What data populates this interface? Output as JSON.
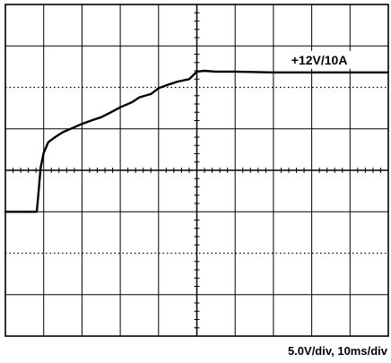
{
  "chart_data": {
    "type": "line",
    "title": "",
    "xlabel": "",
    "ylabel": "",
    "grid": true,
    "divisions": {
      "x": 10,
      "y": 8
    },
    "x_unit": "ms",
    "y_unit": "V",
    "x_per_div": 10,
    "y_per_div": 5.0,
    "xlim": [
      0,
      100
    ],
    "ylim": [
      -20,
      20
    ],
    "series": [
      {
        "name": "+12V/10A",
        "x": [
          0,
          8.2,
          8.6,
          9.2,
          10.0,
          11.2,
          13,
          15,
          17,
          20,
          23,
          25,
          28,
          30,
          33,
          35,
          38,
          40,
          43,
          45,
          48,
          50,
          52,
          55,
          60,
          70,
          80,
          90,
          100
        ],
        "y": [
          -5.0,
          -5.0,
          -3.0,
          0.3,
          2.1,
          3.4,
          4.0,
          4.6,
          5.0,
          5.6,
          6.1,
          6.4,
          7.1,
          7.6,
          8.2,
          8.8,
          9.2,
          9.9,
          10.4,
          10.7,
          11.0,
          11.9,
          12.0,
          11.9,
          11.9,
          11.8,
          11.8,
          11.8,
          11.8
        ]
      }
    ],
    "caption": "5.0V/div,  10ms/div",
    "colors": {
      "trace": "#000000",
      "grid": "#000000",
      "background": "#ffffff"
    }
  }
}
